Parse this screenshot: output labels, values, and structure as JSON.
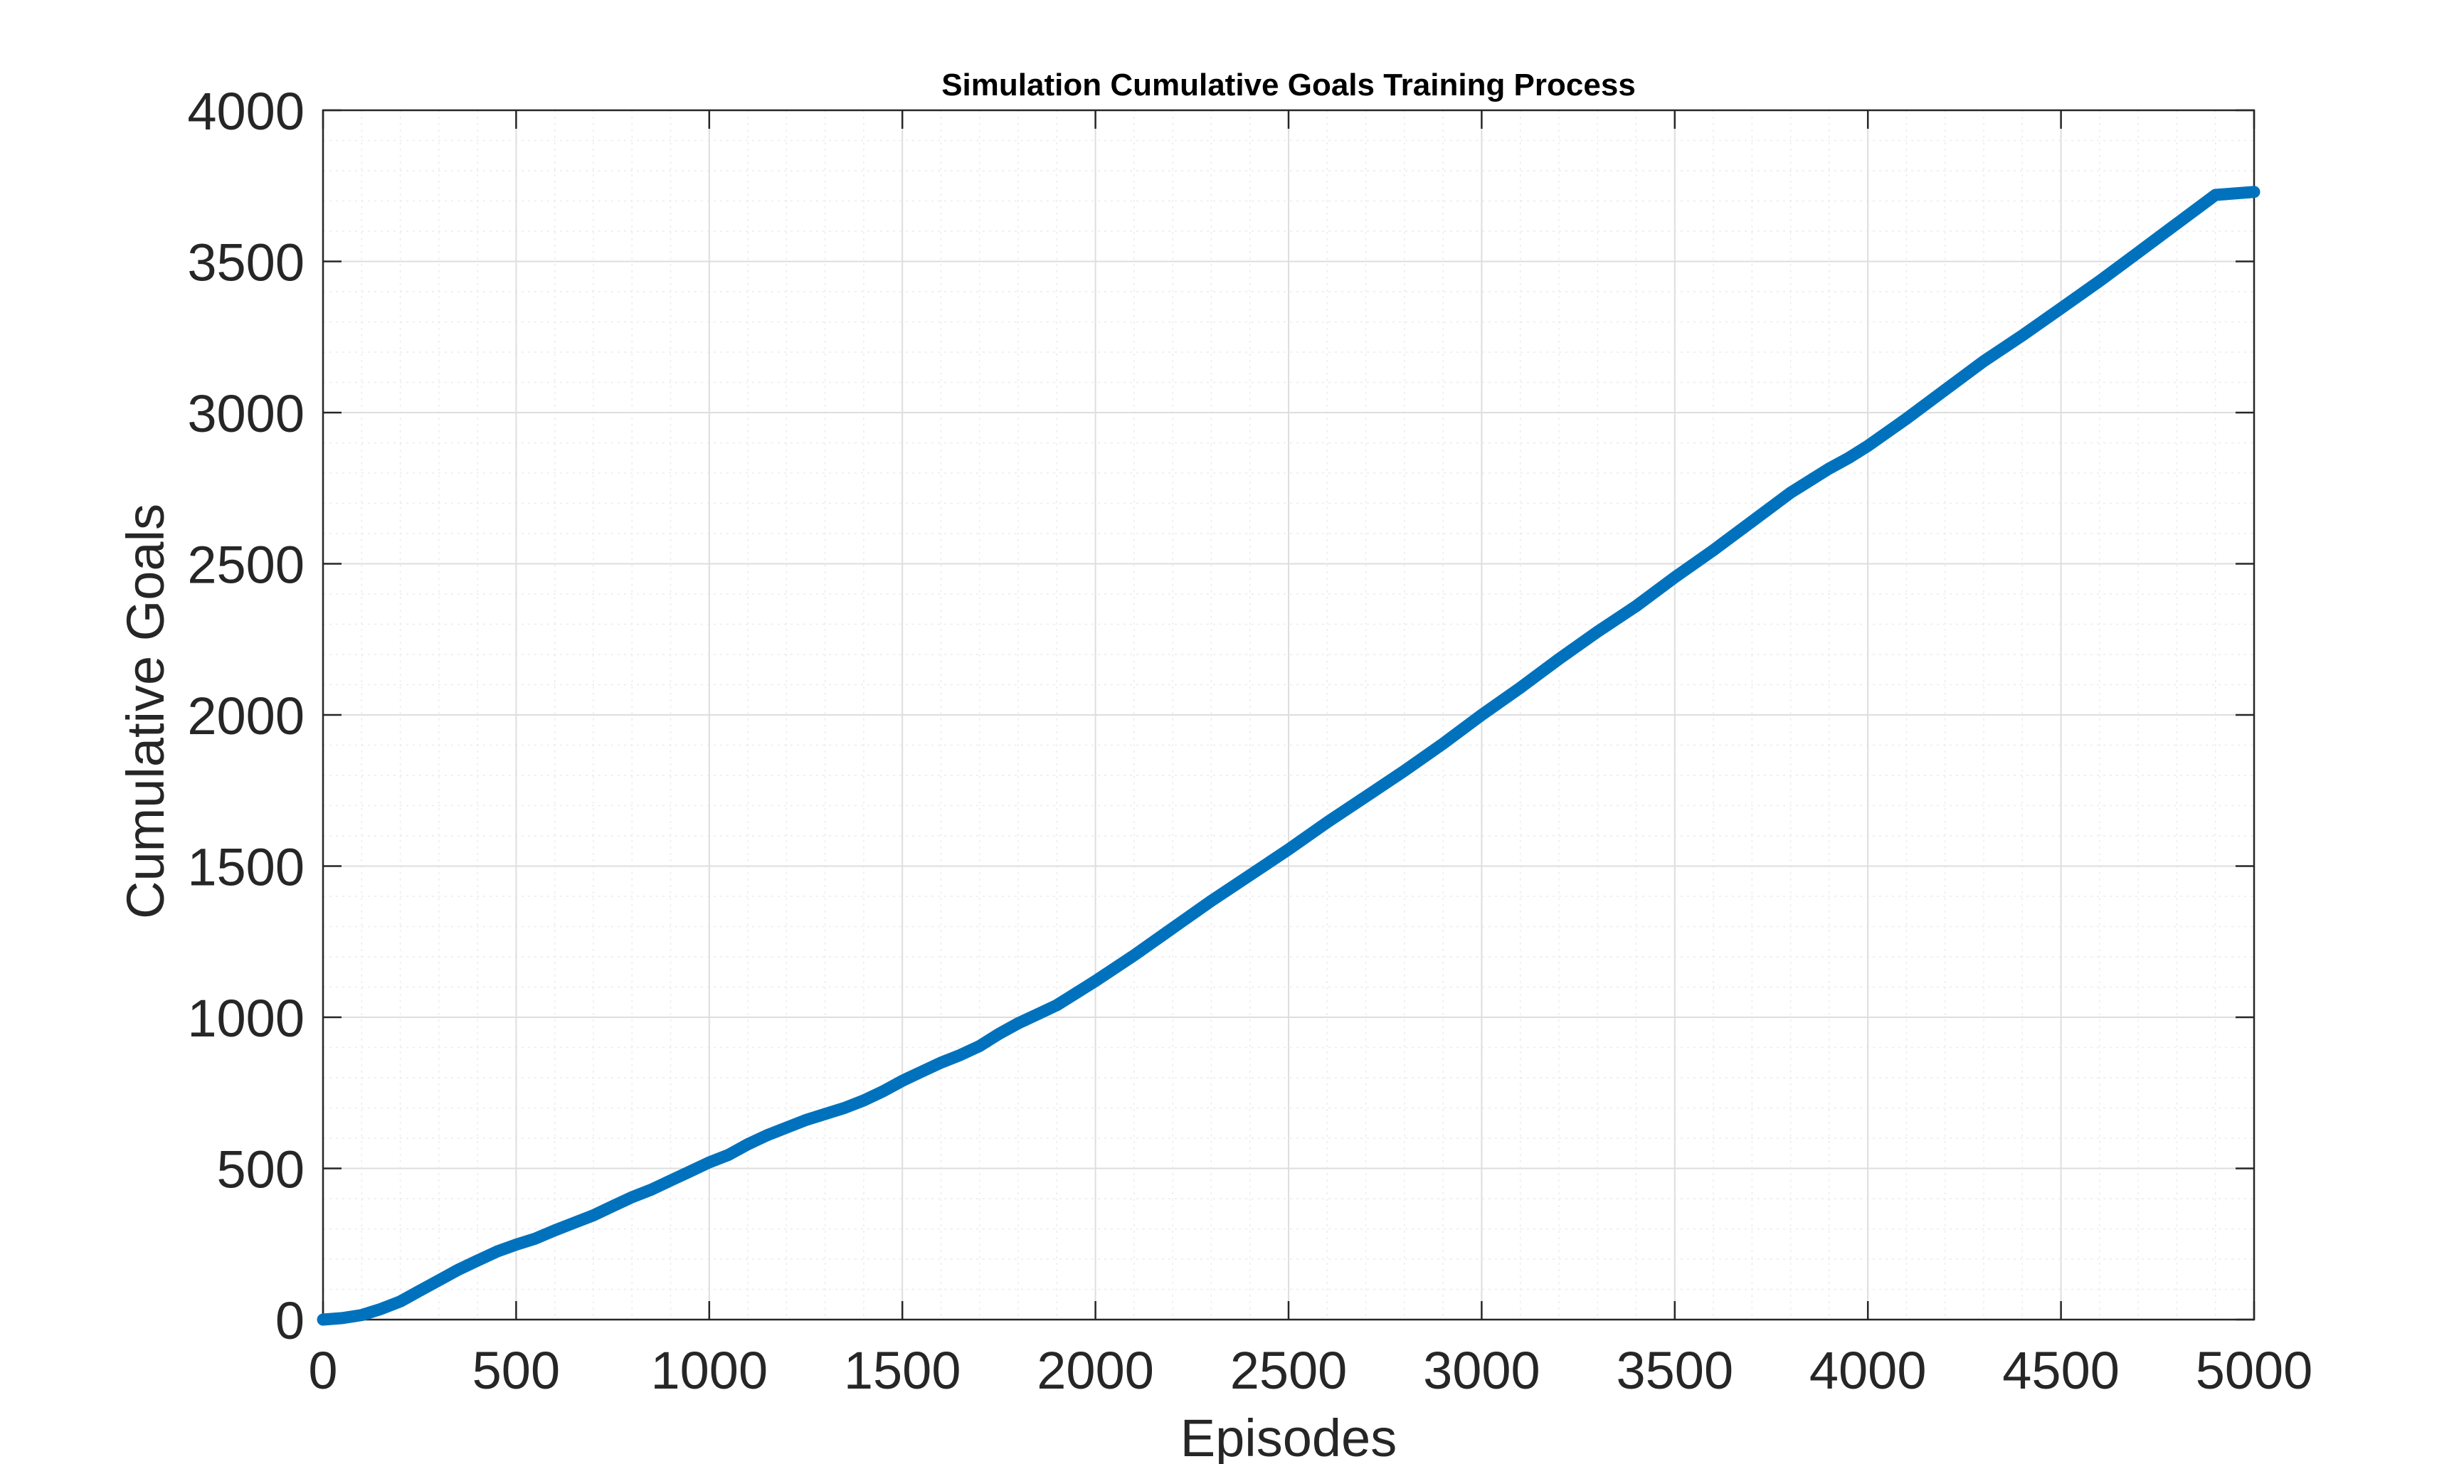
{
  "chart_data": {
    "type": "line",
    "title": "Simulation Cumulative Goals Training Process",
    "xlabel": "Episodes",
    "ylabel": "Cumulative Goals",
    "xlim": [
      0,
      5000
    ],
    "ylim": [
      0,
      4000
    ],
    "xticks": [
      "0",
      "500",
      "1000",
      "1500",
      "2000",
      "2500",
      "3000",
      "3500",
      "4000",
      "4500",
      "5000"
    ],
    "yticks": [
      "0",
      "500",
      "1000",
      "1500",
      "2000",
      "2500",
      "3000",
      "3500",
      "4000"
    ],
    "grid": true,
    "minor_grid": true,
    "line_color": "#0072BD",
    "series": [
      {
        "x": [
          0,
          50,
          100,
          150,
          200,
          250,
          300,
          350,
          400,
          450,
          500,
          550,
          600,
          650,
          700,
          750,
          800,
          850,
          900,
          950,
          1000,
          1050,
          1100,
          1150,
          1200,
          1250,
          1300,
          1350,
          1400,
          1450,
          1500,
          1550,
          1600,
          1650,
          1700,
          1750,
          1800,
          1850,
          1900,
          1950,
          2000,
          2100,
          2200,
          2300,
          2400,
          2500,
          2600,
          2700,
          2800,
          2900,
          3000,
          3100,
          3200,
          3300,
          3400,
          3500,
          3600,
          3700,
          3800,
          3900,
          3950,
          4000,
          4100,
          4200,
          4300,
          4400,
          4500,
          4600,
          4700,
          4800,
          4900,
          5000
        ],
        "values": [
          0,
          5,
          15,
          35,
          60,
          95,
          130,
          165,
          195,
          225,
          248,
          268,
          295,
          320,
          345,
          375,
          405,
          430,
          460,
          490,
          520,
          545,
          580,
          610,
          635,
          660,
          680,
          700,
          725,
          755,
          790,
          820,
          850,
          875,
          905,
          945,
          980,
          1010,
          1040,
          1080,
          1120,
          1205,
          1295,
          1385,
          1470,
          1555,
          1645,
          1730,
          1815,
          1905,
          2000,
          2090,
          2185,
          2275,
          2360,
          2455,
          2545,
          2640,
          2735,
          2815,
          2850,
          2890,
          2980,
          3075,
          3170,
          3255,
          3345,
          3435,
          3530,
          3625,
          3720,
          3730
        ]
      }
    ]
  }
}
